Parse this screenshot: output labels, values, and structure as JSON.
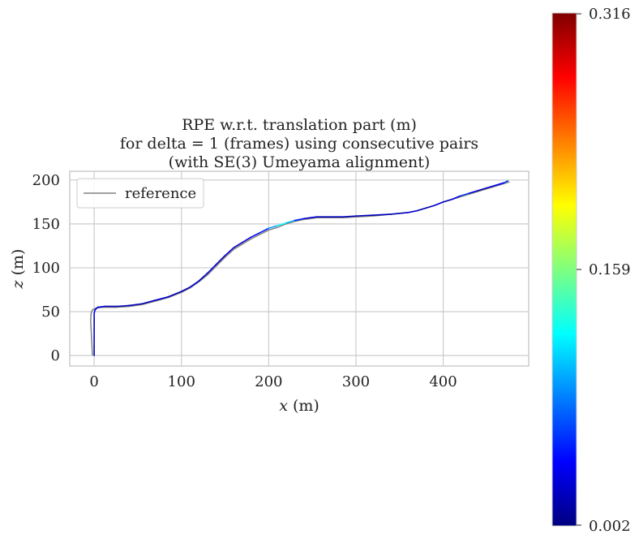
{
  "chart_data": {
    "type": "line",
    "title_lines": [
      "RPE w.r.t. translation part (m)",
      "for delta = 1 (frames) using consecutive pairs",
      "(with SE(3) Umeyama alignment)"
    ],
    "xlabel_var": "x",
    "xlabel_unit": " (m)",
    "ylabel_var": "z",
    "ylabel_unit": " (m)",
    "xlim": [
      -28,
      498
    ],
    "ylim": [
      -12,
      210
    ],
    "xticks": [
      0,
      100,
      200,
      300,
      400
    ],
    "yticks": [
      0,
      50,
      100,
      150,
      200
    ],
    "grid": true,
    "legend": {
      "placement": "top-left",
      "entries": [
        "reference"
      ]
    },
    "reference_color": "#808080",
    "colormap": [
      "#00007f",
      "#0000ff",
      "#007fff",
      "#00ffff",
      "#7fff7f",
      "#ffff00",
      "#ff7f00",
      "#ff0000",
      "#7f0000"
    ],
    "colorbar": {
      "min": 0.002,
      "max": 0.316,
      "ticks": [
        "0.316",
        "0.159",
        "0.002"
      ]
    },
    "series": [
      {
        "name": "reference",
        "x": [
          -2,
          -2.5,
          -3,
          -3.5,
          -4,
          -3.5,
          -2,
          2,
          10,
          25,
          40,
          55,
          70,
          85,
          100,
          110,
          120,
          130,
          140,
          150,
          160,
          170,
          180,
          190,
          200,
          210,
          220,
          230,
          240,
          255,
          270,
          285,
          300,
          320,
          340,
          360,
          370,
          380,
          390,
          400,
          410,
          420,
          430,
          440,
          450,
          460,
          470,
          476
        ],
        "y": [
          0,
          10,
          20,
          30,
          40,
          48,
          52,
          54,
          55,
          55,
          56,
          58,
          62,
          66,
          72,
          77,
          84,
          92,
          102,
          112,
          121,
          127,
          133,
          138,
          143,
          146,
          150,
          153,
          155,
          157,
          157,
          157,
          158,
          159,
          161,
          163,
          165,
          168,
          171,
          175,
          178,
          181,
          184,
          187,
          190,
          193,
          196,
          198
        ]
      },
      {
        "name": "",
        "x": [
          0,
          0,
          0,
          0,
          0,
          0,
          1,
          4,
          12,
          26,
          40,
          55,
          70,
          85,
          100,
          110,
          120,
          130,
          140,
          150,
          160,
          170,
          180,
          190,
          200,
          210,
          220,
          230,
          240,
          255,
          270,
          285,
          300,
          320,
          340,
          360,
          370,
          380,
          390,
          400,
          410,
          420,
          430,
          440,
          450,
          460,
          470,
          474
        ],
        "y": [
          0,
          10,
          20,
          30,
          40,
          48,
          52,
          55,
          56,
          56,
          57,
          59,
          63,
          67,
          73,
          78,
          85,
          94,
          104,
          114,
          123,
          129,
          135,
          140,
          145,
          148,
          151,
          154,
          156,
          158,
          158,
          158,
          159,
          160,
          161,
          163,
          165,
          168,
          171,
          175,
          178,
          182,
          185,
          188,
          191,
          194,
          197,
          199
        ],
        "error": [
          0.02,
          0.02,
          0.03,
          0.02,
          0.03,
          0.04,
          0.04,
          0.03,
          0.02,
          0.02,
          0.02,
          0.02,
          0.03,
          0.02,
          0.02,
          0.03,
          0.02,
          0.03,
          0.02,
          0.03,
          0.02,
          0.03,
          0.04,
          0.05,
          0.09,
          0.12,
          0.1,
          0.05,
          0.03,
          0.02,
          0.02,
          0.02,
          0.02,
          0.02,
          0.02,
          0.03,
          0.02,
          0.02,
          0.03,
          0.02,
          0.03,
          0.06,
          0.03,
          0.02,
          0.03,
          0.04,
          0.06,
          0.04
        ]
      }
    ]
  }
}
